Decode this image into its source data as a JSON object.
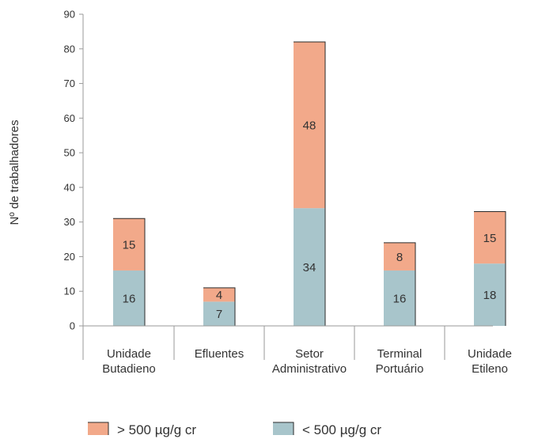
{
  "chart_data": {
    "type": "bar",
    "stacked": true,
    "categories": [
      [
        "Unidade",
        "Butadieno"
      ],
      [
        "Efluentes"
      ],
      [
        "Setor",
        "Administrativo"
      ],
      [
        "Terminal",
        "Portuário"
      ],
      [
        "Unidade",
        "Etileno"
      ]
    ],
    "series": [
      {
        "name": "< 500 µg/g cr",
        "color": "#a8c5cb",
        "values": [
          16,
          7,
          34,
          16,
          18
        ]
      },
      {
        "name": "> 500 µg/g cr",
        "color": "#f2a98a",
        "values": [
          15,
          4,
          48,
          8,
          15
        ]
      }
    ],
    "title": "",
    "xlabel": "",
    "ylabel": "Nº de trabalhadores",
    "ylim": [
      0,
      90
    ],
    "yticks": [
      0,
      10,
      20,
      30,
      40,
      50,
      60,
      70,
      80,
      90
    ],
    "grid": false,
    "legend": {
      "position": "bottom",
      "order": [
        1,
        0
      ]
    }
  }
}
